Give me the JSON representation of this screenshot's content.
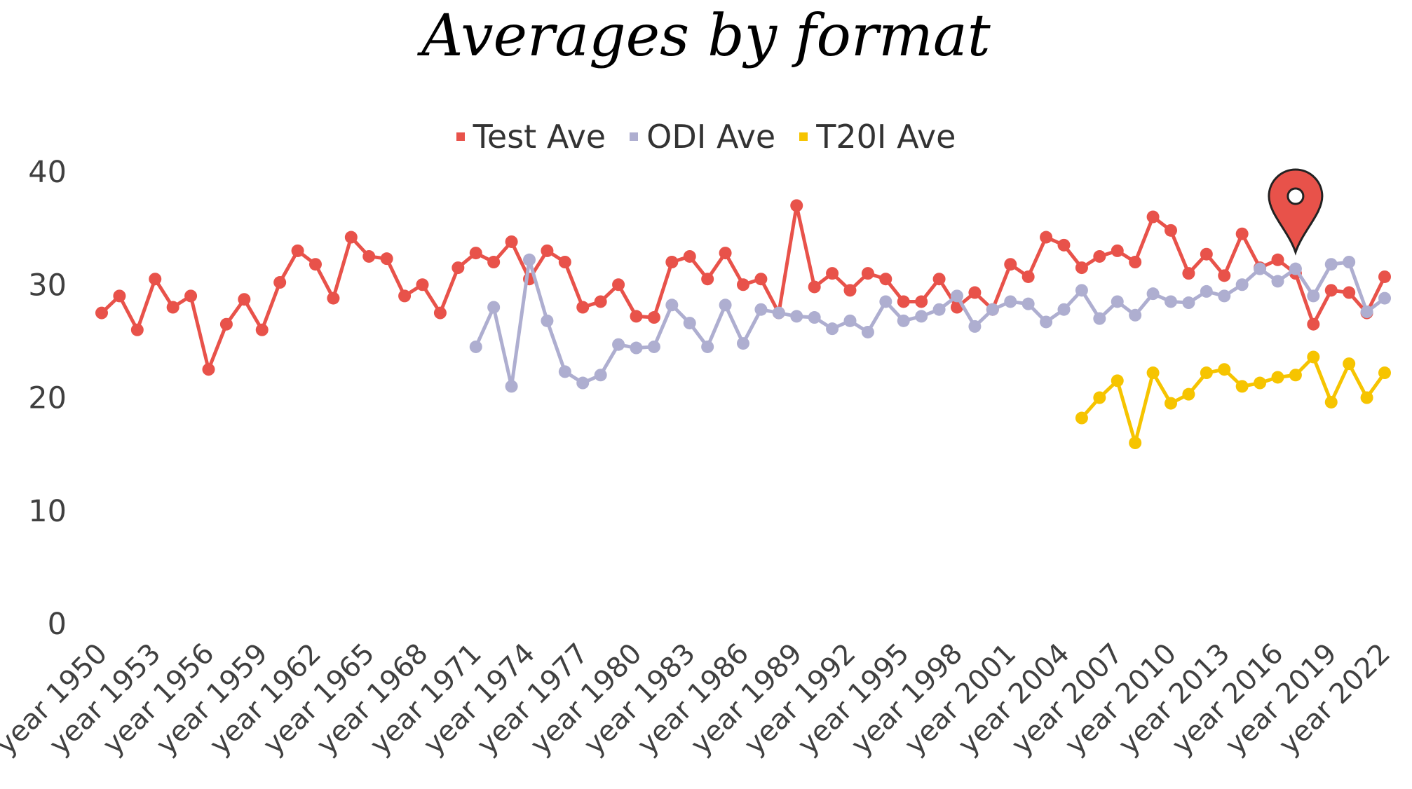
{
  "chart_data": {
    "type": "line",
    "title": "Averages by format",
    "xlabel": "",
    "ylabel": "",
    "ylim": [
      0,
      40
    ],
    "yticks": [
      "0",
      "10",
      "20",
      "30",
      "40"
    ],
    "grid": false,
    "legend_position": "top",
    "x": [
      1950,
      1951,
      1952,
      1953,
      1954,
      1955,
      1956,
      1957,
      1958,
      1959,
      1960,
      1961,
      1962,
      1963,
      1964,
      1965,
      1966,
      1967,
      1968,
      1969,
      1970,
      1971,
      1972,
      1973,
      1974,
      1975,
      1976,
      1977,
      1978,
      1979,
      1980,
      1981,
      1982,
      1983,
      1984,
      1985,
      1986,
      1987,
      1988,
      1989,
      1990,
      1991,
      1992,
      1993,
      1994,
      1995,
      1996,
      1997,
      1998,
      1999,
      2000,
      2001,
      2002,
      2003,
      2004,
      2005,
      2006,
      2007,
      2008,
      2009,
      2010,
      2011,
      2012,
      2013,
      2014,
      2015,
      2016,
      2017,
      2018,
      2019,
      2020,
      2021,
      2022
    ],
    "x_tick_labels": [
      "year 1950",
      "year 1953",
      "year 1956",
      "year 1959",
      "year 1962",
      "year 1965",
      "year 1968",
      "year 1971",
      "year 1974",
      "year 1977",
      "year 1980",
      "year 1983",
      "year 1986",
      "year 1989",
      "year 1992",
      "year 1995",
      "year 1998",
      "year 2001",
      "year 2004",
      "year 2007",
      "year 2010",
      "year 2013",
      "year 2016",
      "year 2019",
      "year 2022"
    ],
    "x_tick_years": [
      1950,
      1953,
      1956,
      1959,
      1962,
      1965,
      1968,
      1971,
      1974,
      1977,
      1980,
      1983,
      1986,
      1989,
      1992,
      1995,
      1998,
      2001,
      2004,
      2007,
      2010,
      2013,
      2016,
      2019,
      2022
    ],
    "series": [
      {
        "name": "Test Ave",
        "color": "#e8524a",
        "values": [
          27.5,
          29,
          26,
          30.5,
          28,
          29,
          22.5,
          26.5,
          28.7,
          26,
          30.2,
          33,
          31.8,
          28.8,
          34.2,
          32.5,
          32.3,
          29,
          30,
          27.5,
          31.5,
          32.8,
          32,
          33.8,
          30.5,
          33,
          32,
          28,
          28.5,
          30,
          27.2,
          27.1,
          32,
          32.5,
          30.5,
          32.8,
          30,
          30.5,
          27.5,
          37,
          29.8,
          31,
          29.5,
          31,
          30.5,
          28.5,
          28.5,
          30.5,
          28,
          29.3,
          27.8,
          31.8,
          30.7,
          34.2,
          33.5,
          31.5,
          32.5,
          33,
          32,
          36,
          34.8,
          31,
          32.7,
          30.8,
          34.5,
          31.5,
          32.2,
          31,
          26.5,
          29.5,
          29.3,
          27.5,
          30.7
        ]
      },
      {
        "name": "ODI Ave",
        "color": "#aeaed0",
        "values": [
          null,
          null,
          null,
          null,
          null,
          null,
          null,
          null,
          null,
          null,
          null,
          null,
          null,
          null,
          null,
          null,
          null,
          null,
          null,
          null,
          null,
          24.5,
          28,
          21,
          32.2,
          26.8,
          22.3,
          21.3,
          22,
          24.7,
          24.4,
          24.5,
          28.2,
          26.6,
          24.5,
          28.2,
          24.8,
          27.8,
          27.5,
          27.2,
          27.1,
          26.1,
          26.8,
          25.8,
          28.5,
          26.8,
          27.2,
          27.8,
          29,
          26.3,
          27.8,
          28.5,
          28.3,
          26.7,
          27.8,
          29.5,
          27,
          28.5,
          27.3,
          29.2,
          28.5,
          28.4,
          29.4,
          29,
          30,
          31.4,
          30.3,
          31.4,
          29,
          31.8,
          32,
          27.6,
          28.8
        ]
      },
      {
        "name": "T20I Ave",
        "color": "#f6c400",
        "values": [
          null,
          null,
          null,
          null,
          null,
          null,
          null,
          null,
          null,
          null,
          null,
          null,
          null,
          null,
          null,
          null,
          null,
          null,
          null,
          null,
          null,
          null,
          null,
          null,
          null,
          null,
          null,
          null,
          null,
          null,
          null,
          null,
          null,
          null,
          null,
          null,
          null,
          null,
          null,
          null,
          null,
          null,
          null,
          null,
          null,
          null,
          null,
          null,
          null,
          null,
          null,
          null,
          null,
          null,
          null,
          18.2,
          20,
          21.5,
          16,
          22.2,
          19.5,
          20.3,
          22.2,
          22.5,
          21,
          21.3,
          21.8,
          22,
          23.6,
          19.6,
          23,
          20,
          22.2
        ]
      }
    ]
  },
  "marker": {
    "icon": "map-pin-icon",
    "color": "#e8524a",
    "year": 2017
  }
}
